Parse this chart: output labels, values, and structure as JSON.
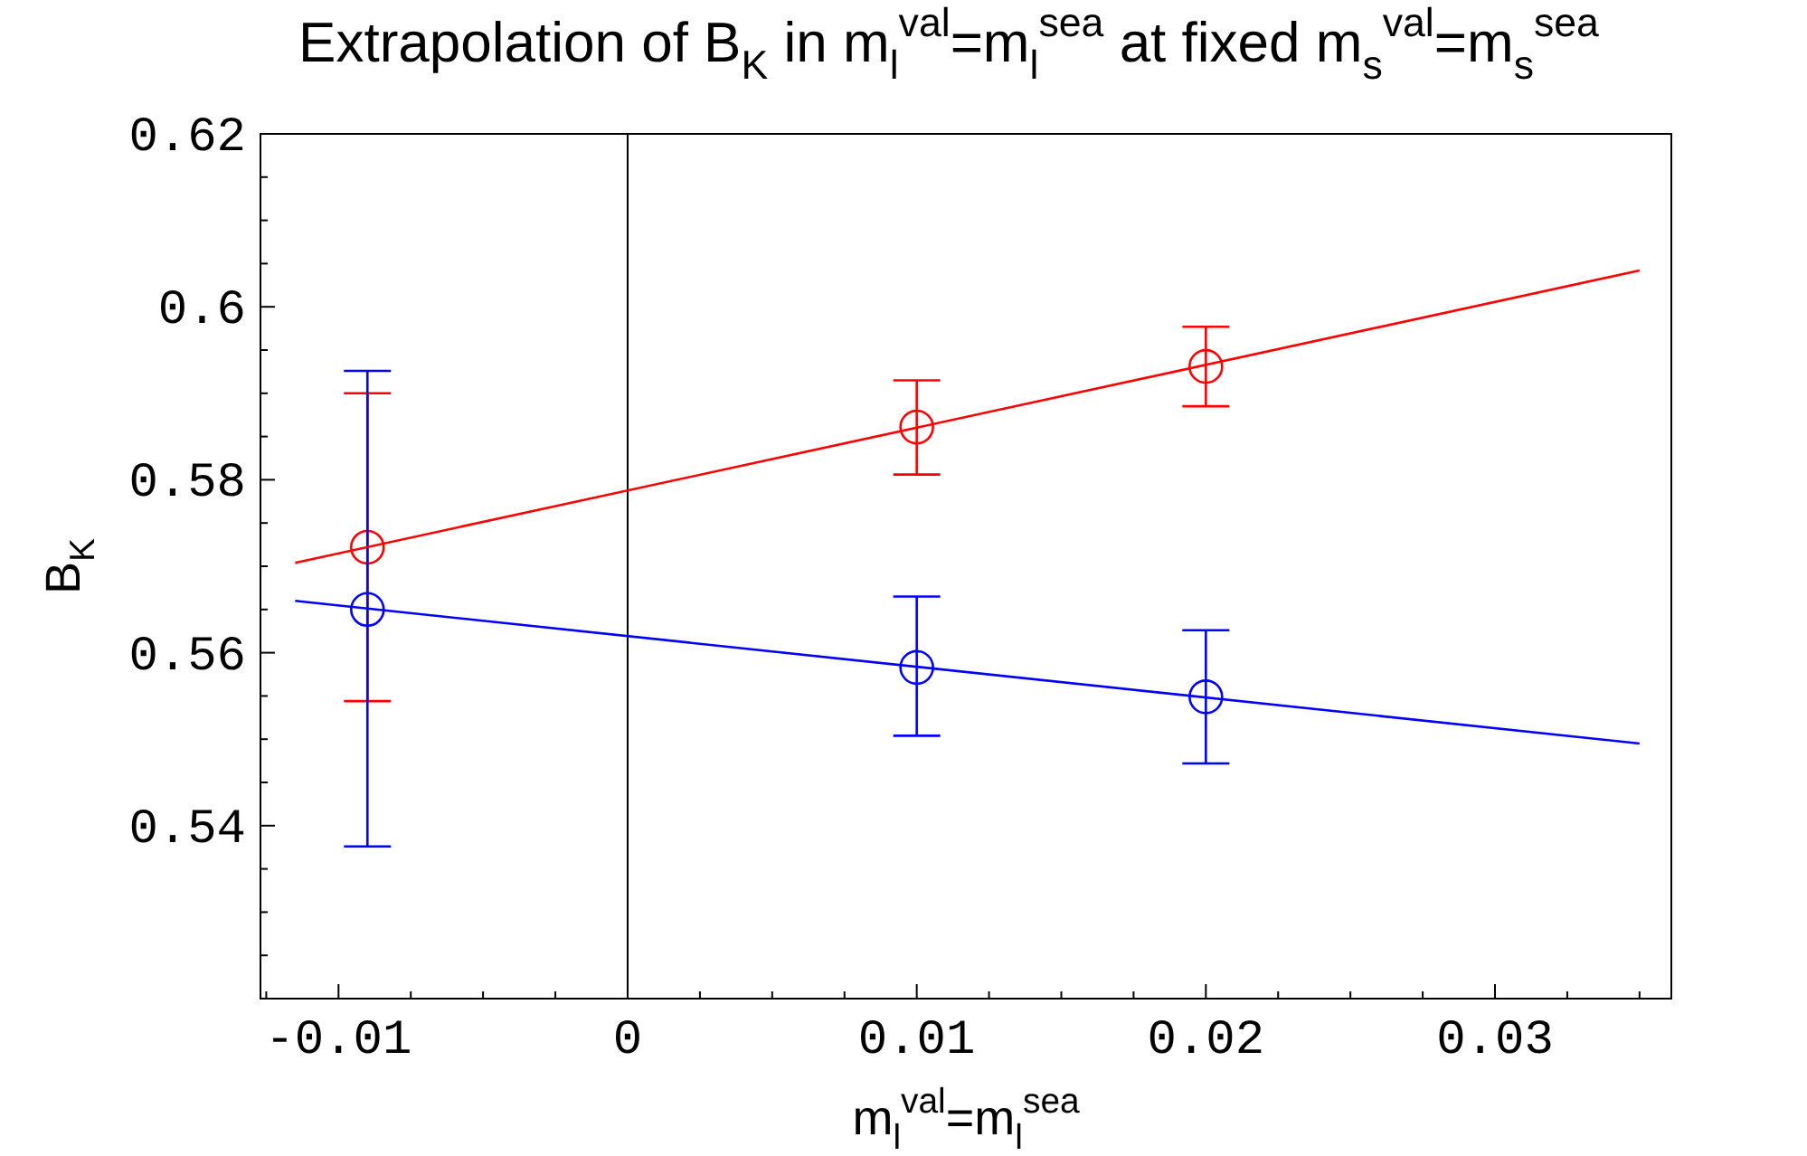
{
  "chart_data": {
    "type": "scatter",
    "title": "Extrapolation of B$_{K}$ in m$_{l}$$^{val}$=m$_{l}$$^{sea}$ at fixed m$_{s}$$^{val}$=m$_{s}$$^{sea}$",
    "xlabel": "m$_{l}$$^{val}$=m$_{l}$$^{sea}$",
    "ylabel": "B$_{K}$",
    "xlim": [
      -0.0127,
      0.0361
    ],
    "ylim": [
      0.52,
      0.62
    ],
    "xticks": [
      {
        "value": -0.0125,
        "label": null
      },
      {
        "value": -0.01,
        "label": "-0.01"
      },
      {
        "value": -0.0075,
        "label": null
      },
      {
        "value": -0.005,
        "label": null
      },
      {
        "value": -0.0025,
        "label": null
      },
      0,
      {
        "value": 0.0025,
        "label": null
      },
      {
        "value": 0.005,
        "label": null
      },
      {
        "value": 0.0075,
        "label": null
      },
      {
        "value": 0.01,
        "label": "0.01"
      },
      {
        "value": 0.0125,
        "label": null
      },
      {
        "value": 0.015,
        "label": null
      },
      {
        "value": 0.0175,
        "label": null
      },
      {
        "value": 0.02,
        "label": "0.02"
      },
      {
        "value": 0.0225,
        "label": null
      },
      {
        "value": 0.025,
        "label": null
      },
      {
        "value": 0.0275,
        "label": null
      },
      {
        "value": 0.03,
        "label": "0.03"
      },
      {
        "value": 0.0325,
        "label": null
      },
      {
        "value": 0.035,
        "label": null
      }
    ],
    "yticks": [
      {
        "value": 0.525,
        "label": null
      },
      {
        "value": 0.53,
        "label": null
      },
      {
        "value": 0.535,
        "label": null
      },
      {
        "value": 0.54,
        "label": "0.54"
      },
      {
        "value": 0.545,
        "label": null
      },
      {
        "value": 0.55,
        "label": null
      },
      {
        "value": 0.555,
        "label": null
      },
      {
        "value": 0.56,
        "label": "0.56"
      },
      {
        "value": 0.565,
        "label": null
      },
      {
        "value": 0.57,
        "label": null
      },
      {
        "value": 0.575,
        "label": null
      },
      {
        "value": 0.58,
        "label": "0.58"
      },
      {
        "value": 0.585,
        "label": null
      },
      {
        "value": 0.59,
        "label": null
      },
      {
        "value": 0.595,
        "label": null
      },
      {
        "value": 0.6,
        "label": "0.6"
      },
      {
        "value": 0.605,
        "label": null
      },
      {
        "value": 0.61,
        "label": null
      },
      {
        "value": 0.615,
        "label": null
      },
      {
        "value": 0.62,
        "label": "0.62"
      }
    ],
    "grid": false,
    "ref_lines": [
      {
        "axis": "x",
        "value": 0,
        "color": "#000000"
      }
    ],
    "series": [
      {
        "marker": "circle",
        "color": "#ff0000",
        "x": [
          -0.009,
          0.01,
          0.02
        ],
        "values": [
          0.5722,
          0.5861,
          0.5931
        ],
        "errors": [
          [
            0.5544,
            0.59
          ],
          [
            0.5806,
            0.5915
          ],
          [
            0.5885,
            0.5977
          ]
        ]
      },
      {
        "marker": "circle",
        "color": "#0000ff",
        "x": [
          -0.009,
          0.01,
          0.02
        ],
        "values": [
          0.565,
          0.5583,
          0.5549
        ],
        "errors": [
          [
            0.5376,
            0.5926
          ],
          [
            0.5504,
            0.5665
          ],
          [
            0.5472,
            0.5626
          ]
        ]
      },
      {
        "type": "line",
        "marker": "none",
        "color": "#ff0000",
        "x": [
          -0.0115,
          0.035
        ],
        "values": [
          0.5704,
          0.6042
        ]
      },
      {
        "type": "line",
        "marker": "none",
        "color": "#0000ff",
        "x": [
          -0.0115,
          0.035
        ],
        "values": [
          0.566,
          0.5495
        ]
      }
    ]
  }
}
